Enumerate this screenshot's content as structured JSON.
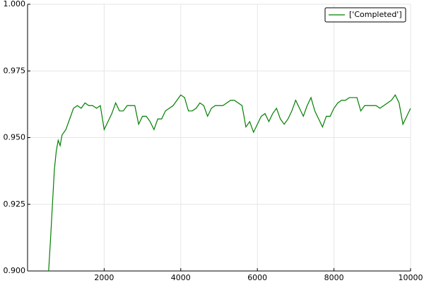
{
  "chart_data": {
    "type": "line",
    "x": [
      550,
      600,
      650,
      700,
      750,
      800,
      850,
      900,
      1000,
      1100,
      1200,
      1300,
      1400,
      1500,
      1600,
      1700,
      1800,
      1900,
      2000,
      2100,
      2200,
      2300,
      2400,
      2500,
      2600,
      2700,
      2800,
      2900,
      3000,
      3100,
      3200,
      3300,
      3400,
      3500,
      3600,
      3700,
      3800,
      3900,
      4000,
      4100,
      4200,
      4300,
      4400,
      4500,
      4600,
      4700,
      4800,
      4900,
      5000,
      5100,
      5200,
      5300,
      5400,
      5500,
      5600,
      5700,
      5800,
      5900,
      6000,
      6100,
      6200,
      6300,
      6400,
      6500,
      6600,
      6700,
      6800,
      6900,
      7000,
      7100,
      7200,
      7300,
      7400,
      7500,
      7600,
      7700,
      7800,
      7900,
      8000,
      8100,
      8200,
      8300,
      8400,
      8500,
      8600,
      8700,
      8800,
      8900,
      9000,
      9100,
      9200,
      9300,
      9400,
      9500,
      9600,
      9700,
      9800,
      9900,
      10000
    ],
    "series": [
      {
        "name": "['Completed']",
        "color": "#008000",
        "values": [
          0.9,
          0.912,
          0.925,
          0.938,
          0.945,
          0.949,
          0.947,
          0.951,
          0.953,
          0.957,
          0.961,
          0.962,
          0.961,
          0.963,
          0.962,
          0.962,
          0.961,
          0.962,
          0.953,
          0.956,
          0.959,
          0.963,
          0.96,
          0.96,
          0.962,
          0.962,
          0.962,
          0.955,
          0.958,
          0.958,
          0.956,
          0.953,
          0.957,
          0.957,
          0.96,
          0.961,
          0.962,
          0.964,
          0.966,
          0.965,
          0.96,
          0.96,
          0.961,
          0.963,
          0.962,
          0.958,
          0.961,
          0.962,
          0.962,
          0.962,
          0.963,
          0.964,
          0.964,
          0.963,
          0.962,
          0.954,
          0.956,
          0.952,
          0.955,
          0.958,
          0.959,
          0.956,
          0.959,
          0.961,
          0.957,
          0.955,
          0.957,
          0.96,
          0.964,
          0.961,
          0.958,
          0.962,
          0.965,
          0.96,
          0.957,
          0.954,
          0.958,
          0.958,
          0.961,
          0.963,
          0.964,
          0.964,
          0.965,
          0.965,
          0.965,
          0.96,
          0.962,
          0.962,
          0.962,
          0.962,
          0.961,
          0.962,
          0.963,
          0.964,
          0.966,
          0.963,
          0.955,
          0.958,
          0.961
        ]
      }
    ],
    "xlim": [
      0,
      10000
    ],
    "xticks": [
      2000,
      4000,
      6000,
      8000,
      10000
    ],
    "ylim": [
      0.9,
      1.0
    ],
    "yticks": [
      {
        "value": 0.9,
        "label": "0.900"
      },
      {
        "value": 0.925,
        "label": "0.925"
      },
      {
        "value": 0.95,
        "label": "0.950"
      },
      {
        "value": 0.975,
        "label": "0.975"
      },
      {
        "value": 1.0,
        "label": "1.000"
      }
    ],
    "grid": true,
    "legend": "top-right"
  }
}
